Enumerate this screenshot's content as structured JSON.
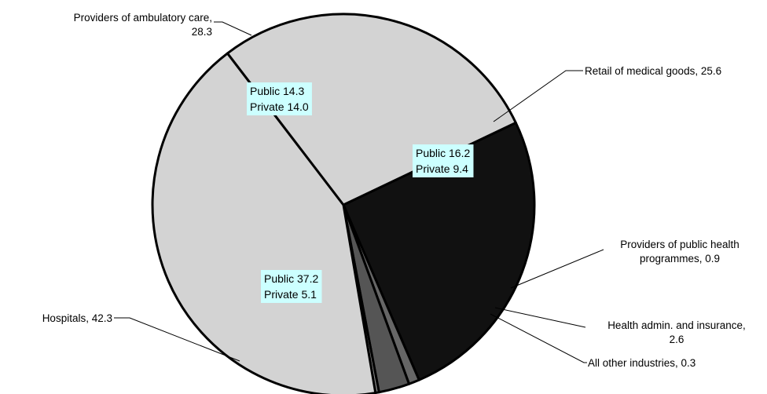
{
  "chart_data": {
    "type": "pie",
    "slices": [
      {
        "name": "Retail of medical goods",
        "value": 25.6,
        "label": [
          "Retail of medical goods, 25.6"
        ],
        "inner": {
          "public": "Public 16.2",
          "private": "Private 9.4"
        }
      },
      {
        "name": "Providers of public health programmes",
        "value": 0.9,
        "label": [
          "Providers of public health",
          "programmes, 0.9"
        ]
      },
      {
        "name": "Health admin. and insurance",
        "value": 2.6,
        "label": [
          "Health admin. and insurance,",
          "2.6"
        ]
      },
      {
        "name": "All other industries",
        "value": 0.3,
        "label": [
          "All other industries, 0.3"
        ]
      },
      {
        "name": "Hospitals",
        "value": 42.3,
        "label": [
          "Hospitals, 42.3"
        ],
        "inner": {
          "public": "Public 37.2",
          "private": "Private 5.1"
        }
      },
      {
        "name": "Providers of ambulatory care",
        "value": 28.3,
        "label": [
          "Providers of ambulatory care,",
          "28.3"
        ],
        "inner": {
          "public": "Public 14.3",
          "private": "Private 14.0"
        }
      }
    ],
    "colors": [
      "#111111",
      "#666666",
      "#555555",
      "#888888",
      "#d3d3d3",
      "#d3d3d3"
    ],
    "inner_label_bg": "#ccffff"
  }
}
